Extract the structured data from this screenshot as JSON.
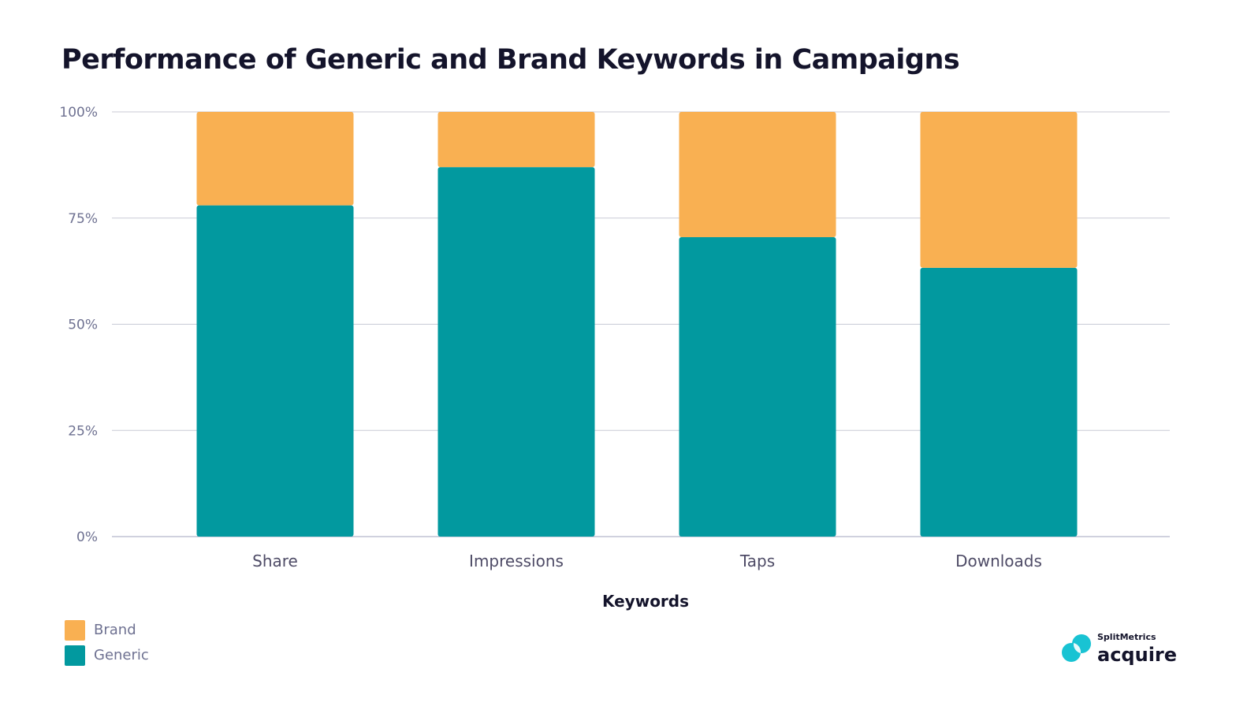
{
  "chart_data": {
    "type": "bar",
    "stacked": true,
    "title": "Performance of Generic and Brand Keywords in Campaigns",
    "xlabel": "Keywords",
    "ylabel": "",
    "categories": [
      "Share",
      "Impressions",
      "Taps",
      "Downloads"
    ],
    "series": [
      {
        "name": "Generic",
        "color": "#02999f",
        "values": [
          78,
          87,
          70.5,
          63.3
        ]
      },
      {
        "name": "Brand",
        "color": "#f9b052",
        "values": [
          22,
          13,
          29.5,
          36.7
        ]
      }
    ],
    "ylim": [
      0,
      100
    ],
    "yticks": [
      "0%",
      "25%",
      "50%",
      "75%",
      "100%"
    ],
    "grid": true,
    "legend_position": "bottom-left"
  },
  "legend": [
    {
      "label": "Brand",
      "color": "#f9b052"
    },
    {
      "label": "Generic",
      "color": "#02999f"
    }
  ],
  "logo": {
    "top": "SplitMetrics",
    "bottom": "acquire"
  }
}
